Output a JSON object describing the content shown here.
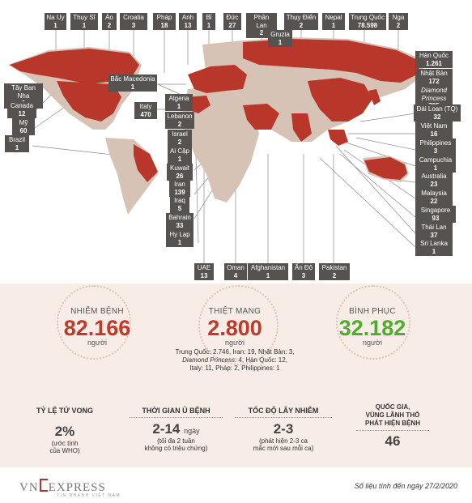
{
  "labels_top": [
    {
      "name": "Na Uy",
      "value": "1"
    },
    {
      "name": "Thụy Sĩ",
      "value": "1"
    },
    {
      "name": "Áo",
      "value": "2"
    },
    {
      "name": "Croatia",
      "value": "3"
    },
    {
      "name": "Pháp",
      "value": "18"
    },
    {
      "name": "Anh",
      "value": "13"
    },
    {
      "name": "Bỉ",
      "value": "1"
    },
    {
      "name": "Đức",
      "value": "27"
    },
    {
      "name": "Phần Lan",
      "value": "2"
    },
    {
      "name": "Thụy Điển",
      "value": "2"
    },
    {
      "name": "Nepal",
      "value": "1"
    },
    {
      "name": "Trung Quốc",
      "value": "78.598"
    },
    {
      "name": "Nga",
      "value": "2"
    }
  ],
  "gruzia": {
    "name": "Gruzia",
    "value": "1"
  },
  "bac_macedonia": {
    "name": "Bắc Macedonia",
    "value": "1"
  },
  "labels_left": [
    {
      "name": "Tây Ban Nha",
      "value": "9"
    },
    {
      "name": "Canada",
      "value": "12"
    },
    {
      "name": "Mỹ",
      "value": "60"
    },
    {
      "name": "Brazil",
      "value": "1"
    }
  ],
  "italy": {
    "name": "Italy",
    "value": "470"
  },
  "labels_mid": [
    {
      "name": "Algeria",
      "value": "1"
    },
    {
      "name": "Lebanon",
      "value": "2"
    },
    {
      "name": "Israel",
      "value": "2"
    },
    {
      "name": "Ai Cập",
      "value": "1"
    },
    {
      "name": "Kuwait",
      "value": "26"
    },
    {
      "name": "Iran",
      "value": "139"
    },
    {
      "name": "Iraq",
      "value": "5"
    },
    {
      "name": "Bahrain",
      "value": "33"
    },
    {
      "name": "Hy Lạp",
      "value": "1"
    }
  ],
  "labels_bottom": [
    {
      "name": "UAE",
      "value": "13"
    },
    {
      "name": "Oman",
      "value": "4"
    },
    {
      "name": "Afghanistan",
      "value": "1"
    },
    {
      "name": "Ấn Độ",
      "value": "3"
    },
    {
      "name": "Pakistan",
      "value": "2"
    }
  ],
  "labels_right": [
    {
      "name": "Hàn Quốc",
      "value": "1.261"
    },
    {
      "name": "Nhật Bản",
      "value": "172"
    },
    {
      "name": "Diamond Princess",
      "value": "705"
    },
    {
      "name": "Đài Loan (TQ)",
      "value": "32"
    },
    {
      "name": "Việt Nam",
      "value": "16"
    },
    {
      "name": "Philippines",
      "value": "3"
    },
    {
      "name": "Campuchia",
      "value": "1"
    },
    {
      "name": "Australia",
      "value": "23"
    },
    {
      "name": "Malaysia",
      "value": "22"
    },
    {
      "name": "Singapore",
      "value": "93"
    },
    {
      "name": "Thái Lan",
      "value": "37"
    },
    {
      "name": "Sri Lanka",
      "value": "1"
    }
  ],
  "stats": {
    "infected": {
      "title": "NHIỄM BỆNH",
      "value": "82.166",
      "unit": "người"
    },
    "deaths": {
      "title": "THIỆT MẠNG",
      "value": "2.800",
      "unit": "người",
      "detail1": "Trung Quốc: 2.746, Iran: 19, Nhật Bản: 3,",
      "detail2_italic": "Diamond Princess",
      "detail2_rest": ": 4, Hàn Quốc: 12,",
      "detail3": "Italy: 11, Pháp: 2, Philippines: 1"
    },
    "recovered": {
      "title": "BÌNH PHỤC",
      "value": "32.182",
      "unit": "người"
    },
    "death_rate": {
      "title": "TỶ LỆ TỬ VONG",
      "value": "2%",
      "sub1": "(ước tính",
      "sub2": "của WHO)"
    },
    "incubation": {
      "title": "THỜI GIAN Ủ BỆNH",
      "value": "2-14",
      "unit": "ngày",
      "sub1": "(tối đa 2 tuần",
      "sub2": "không có triệu chứng)"
    },
    "spread": {
      "title": "TỐC ĐỘ LÂY NHIỄM",
      "value": "2-3",
      "sub1": "(phát hiện 2-3 ca",
      "sub2": "mắc mới sau mỗi ca)"
    },
    "countries": {
      "title1": "QUỐC GIA,",
      "title2": "VÙNG LÃNH THỔ",
      "title3": "PHÁT HIỆN BỆNH",
      "value": "46"
    }
  },
  "footer": {
    "logo_vn": "VN",
    "logo_express": "EXPRESS",
    "logo_tagline": "TIN NHANH VIỆT NAM",
    "note": "Số liệu tính đến ngày 27/2/2020"
  },
  "colors": {
    "map_red": "#b8362a",
    "map_beige": "#d7c3b6",
    "label_bg": "#55524f",
    "red_text": "#c0392b",
    "green_text": "#4caf2a",
    "stats_bg": "#f7ece6"
  }
}
